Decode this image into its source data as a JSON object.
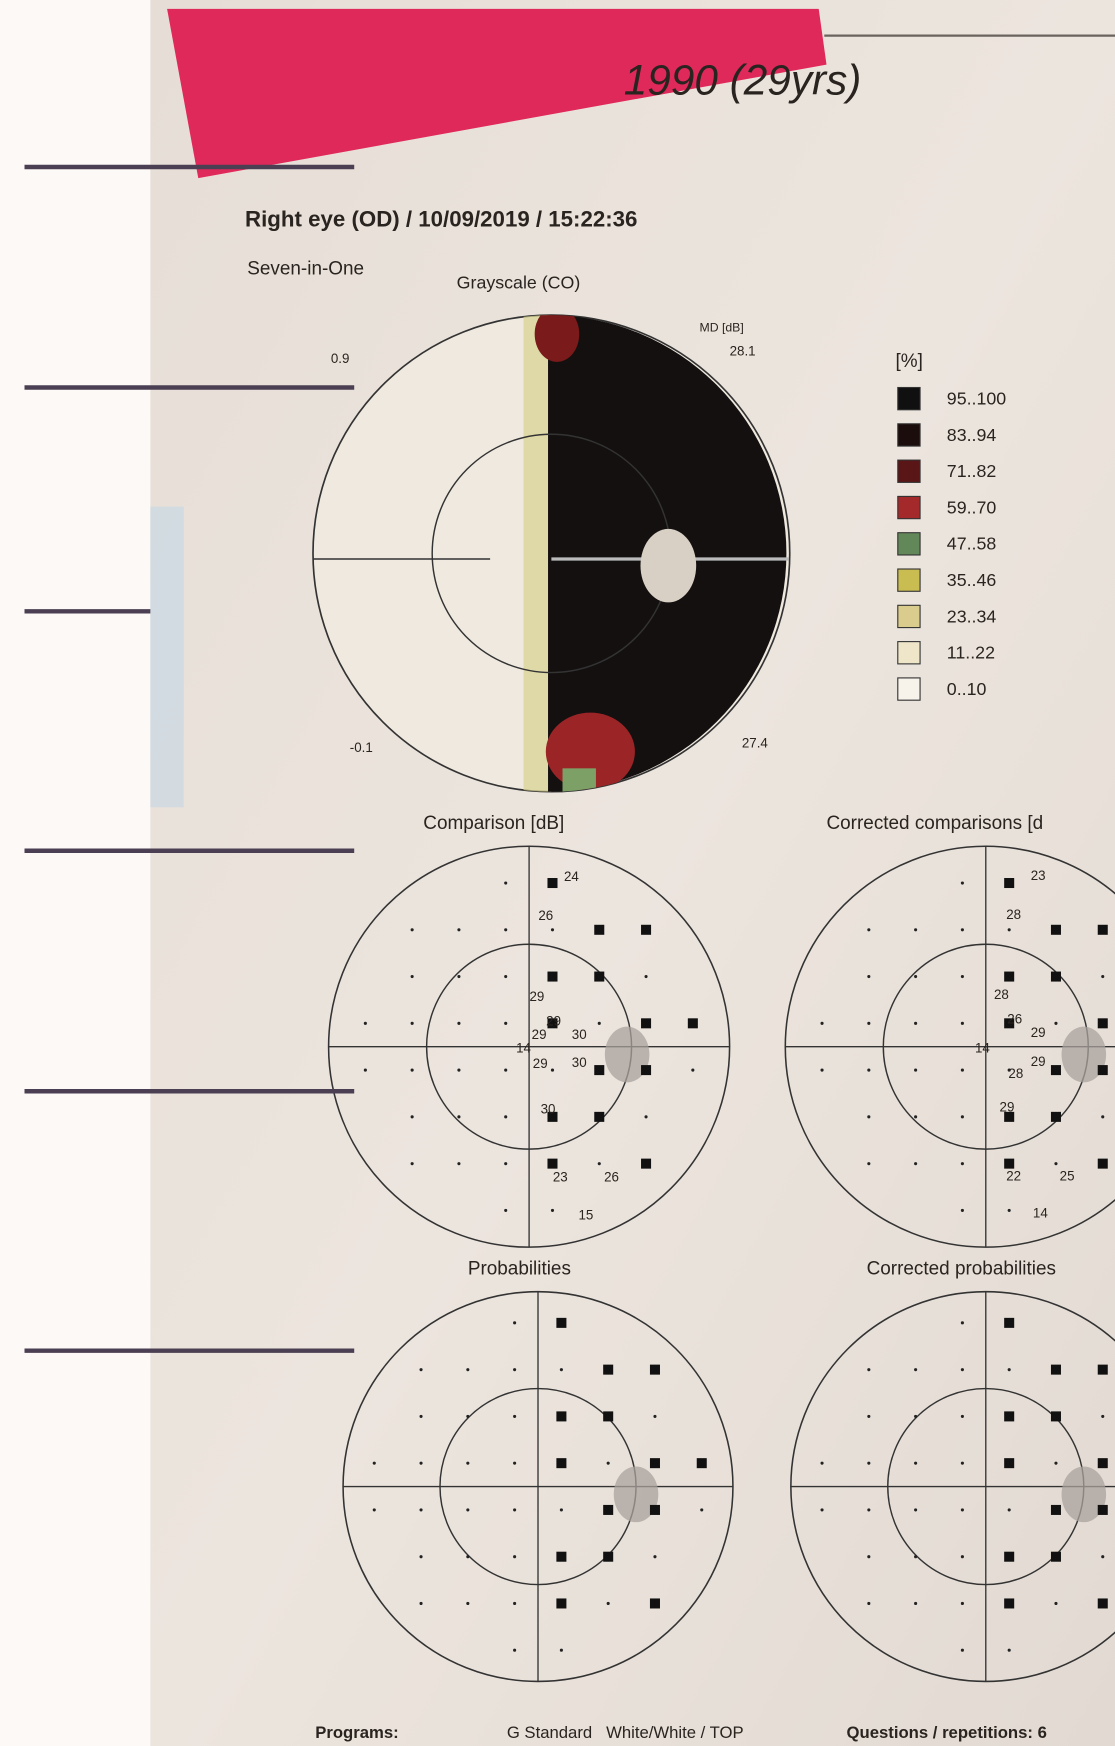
{
  "header": {
    "title": "1990 (29yrs)",
    "exam": "Right eye (OD) / 10/09/2019 / 15:22:36",
    "program": "Seven-in-One"
  },
  "grayscale": {
    "title": "Grayscale (CO)",
    "md_label": "MD [dB]",
    "md_value": "28.1",
    "top_left": "0.9",
    "bottom_left": "-0.1",
    "bottom_right": "27.4"
  },
  "legend": {
    "title": "[%]",
    "items": [
      {
        "label": "95..100",
        "color": "#111010"
      },
      {
        "label": "83..94",
        "color": "#1c0d0d"
      },
      {
        "label": "71..82",
        "color": "#5a1616"
      },
      {
        "label": "59..70",
        "color": "#a3292b"
      },
      {
        "label": "47..58",
        "color": "#62885a"
      },
      {
        "label": "35..46",
        "color": "#c9bd52"
      },
      {
        "label": "23..34",
        "color": "#d9cc8c"
      },
      {
        "label": "11..22",
        "color": "#efe6c9"
      },
      {
        "label": "0..10",
        "color": "#f7f2ea"
      }
    ]
  },
  "comparison": {
    "title": "Comparison [dB]",
    "values": [
      "24",
      "26",
      "29",
      "29",
      "29",
      "30",
      "14",
      "29",
      "30",
      "30",
      "23",
      "26",
      "15"
    ]
  },
  "corrected_comparison": {
    "title": "Corrected comparisons [d",
    "values": [
      "23",
      "28",
      "28",
      "26",
      "29",
      "14",
      "29",
      "28",
      "29",
      "22",
      "25",
      "14"
    ]
  },
  "probabilities": {
    "title": "Probabilities"
  },
  "corrected_probabilities": {
    "title": "Corrected probabilities"
  },
  "footer": {
    "programs_label": "Programs:",
    "programs": "G Standard   White/White / TOP",
    "questions": "Questions / repetitions: 6"
  }
}
